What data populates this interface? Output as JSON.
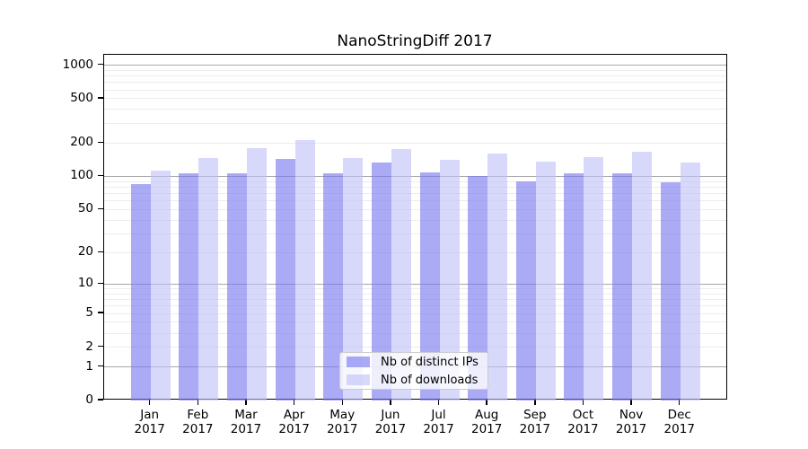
{
  "title": "NanoStringDiff 2017",
  "legend": {
    "items": [
      {
        "label": "Nb of distinct IPs",
        "color": "rgba(118,118,239,0.62)"
      },
      {
        "label": "Nb of downloads",
        "color": "rgba(192,192,247,0.62)"
      }
    ]
  },
  "chart_data": {
    "type": "bar",
    "title": "NanoStringDiff 2017",
    "categories": [
      "Jan",
      "Feb",
      "Mar",
      "Apr",
      "May",
      "Jun",
      "Jul",
      "Aug",
      "Sep",
      "Oct",
      "Nov",
      "Dec"
    ],
    "year": "2017",
    "series": [
      {
        "name": "Nb of distinct IPs",
        "values": [
          85,
          106,
          106,
          145,
          106,
          134,
          108,
          100,
          91,
          106,
          106,
          89
        ]
      },
      {
        "name": "Nb of downloads",
        "values": [
          112,
          146,
          181,
          213,
          146,
          178,
          140,
          161,
          137,
          149,
          167,
          134
        ]
      }
    ],
    "y_ticks": [
      0,
      1,
      2,
      5,
      10,
      20,
      50,
      100,
      200,
      500,
      1000
    ],
    "y_scale": "log10(value+1)",
    "ylim": [
      0,
      1100
    ],
    "xlabel": "",
    "ylabel": "",
    "grid": "on",
    "legend_position": "inside lower-center",
    "colors": {
      "ips_bar": "rgba(118,118,239,0.62)",
      "downloads_bar": "rgba(192,192,247,0.62)",
      "major_grid": "#a8a8a8",
      "minor_grid": "#ececec"
    }
  }
}
